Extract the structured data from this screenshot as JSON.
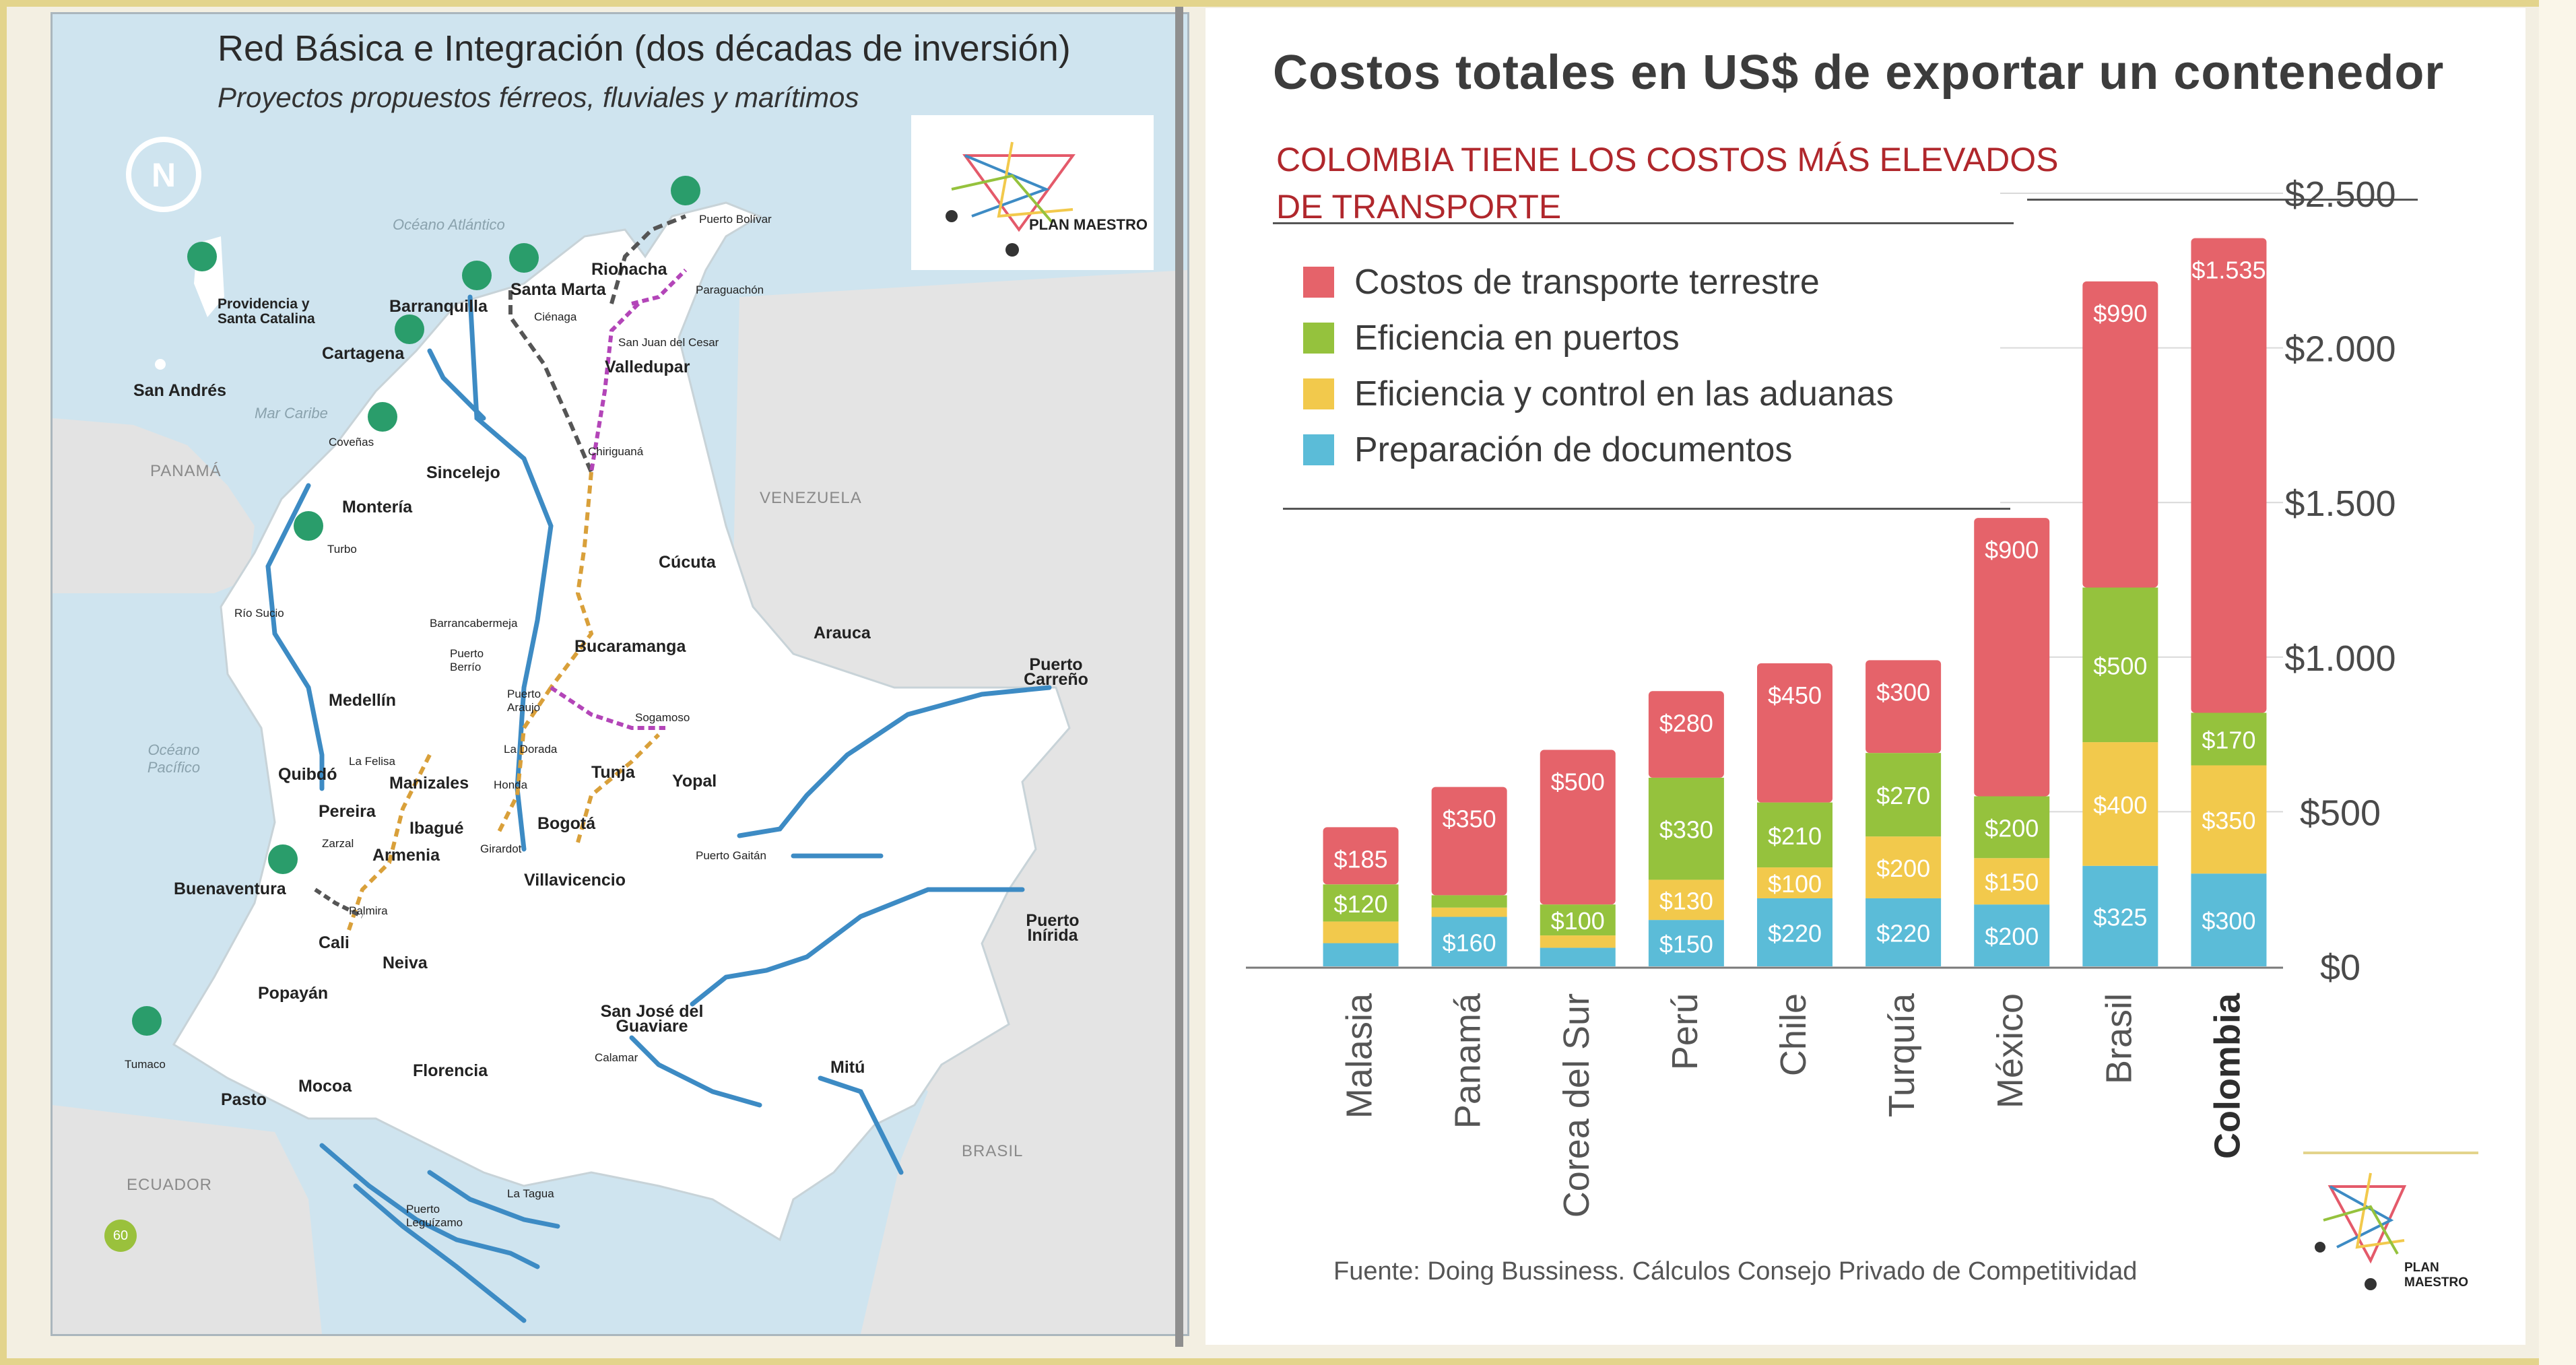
{
  "map": {
    "title": "Red Básica e Integración (dos décadas de inversión)",
    "subtitle": "Proyectos propuestos férreos, fluviales y marítimos",
    "logo_text": "PLAN MAESTRO",
    "page_number": "60",
    "labels": {
      "oceano_atlantico": "Océano Atlántico",
      "mar_caribe": "Mar Caribe",
      "oceano_pacifico": "Océano Pacífico",
      "panama": "PANAMÁ",
      "venezuela": "VENEZUELA",
      "ecuador": "ECUADOR",
      "brasil": "BRASIL",
      "providencia": "Providencia y Santa Catalina",
      "san_andres": "San Andrés",
      "barranquilla": "Barranquilla",
      "santa_marta": "Santa Marta",
      "riohacha": "Riohacha",
      "puerto_bolivar": "Puerto Bolívar",
      "paraguachon": "Paraguachón",
      "cienaga": "Ciénaga",
      "san_juan_cesar": "San Juan del Cesar",
      "valledupar": "Valledupar",
      "cartagena": "Cartagena",
      "covenas": "Coveñas",
      "sincelejo": "Sincelejo",
      "chiriguana": "Chiriguaná",
      "monteria": "Montería",
      "turbo": "Turbo",
      "cucuta": "Cúcuta",
      "rio_sucio": "Río Sucio",
      "barrancabermeja": "Barrancabermeja",
      "bucaramanga": "Bucaramanga",
      "arauca": "Arauca",
      "puerto_carreno": "Puerto Carreño",
      "puerto_berrio": "Puerto Berrío",
      "puerto_araujo": "Puerto Araujo",
      "sogamoso": "Sogamoso",
      "medellin": "Medellín",
      "la_felisa": "La Felisa",
      "la_dorada": "La Dorada",
      "quibdo": "Quibdó",
      "manizales": "Manizales",
      "honda": "Honda",
      "tunja": "Tunja",
      "yopal": "Yopal",
      "pereira": "Pereira",
      "ibague": "Ibagué",
      "zarzal": "Zarzal",
      "armenia": "Armenia",
      "bogota": "Bogotá",
      "girardot": "Girardot",
      "puerto_gaitan": "Puerto Gaitán",
      "villavicencio": "Villavicencio",
      "buenaventura": "Buenaventura",
      "palmira": "Palmira",
      "cali": "Cali",
      "neiva": "Neiva",
      "puerto_inirida": "Puerto Inírida",
      "popayan": "Popayán",
      "san_jose": "San José del Guaviare",
      "calamar": "Calamar",
      "tumaco": "Tumaco",
      "mitu": "Mitú",
      "florencia": "Florencia",
      "pasto": "Pasto",
      "mocoa": "Mocoa",
      "la_tagua": "La Tagua",
      "puerto_leguizamo": "Puerto Leguízamo"
    }
  },
  "chart": {
    "subtitle_line1": "COLOMBIA TIENE LOS COSTOS MÁS ELEVADOS",
    "subtitle_line2": "DE TRANSPORTE",
    "source": "Fuente: Doing Bussiness. Cálculos Consejo Privado de Competitividad",
    "logo_text": "PLAN MAESTRO"
  },
  "chart_data": {
    "type": "bar",
    "stacked": true,
    "title": "Costos totales  en US$ de exportar un contenedor",
    "categories": [
      "Malasia",
      "Panamá",
      "Corea del Sur",
      "Perú",
      "Chile",
      "Turquía",
      "México",
      "Brasil",
      "Colombia"
    ],
    "highlight_category": "Colombia",
    "ylim": [
      0,
      2500
    ],
    "yticks": [
      0,
      500,
      1000,
      1500,
      2000,
      2500
    ],
    "ytick_labels": [
      "$0",
      "$500",
      "$1.000",
      "$1.500",
      "$2.000",
      "$2.500"
    ],
    "series": [
      {
        "name": "Preparación de documentos",
        "color": "#5bbcd8",
        "values": [
          75,
          160,
          60,
          150,
          220,
          220,
          200,
          325,
          300
        ],
        "labels": [
          "",
          "$160",
          "",
          "$150",
          "$220",
          "$220",
          "$200",
          "$325",
          "$300"
        ]
      },
      {
        "name": "Eficiencia y control en las aduanas",
        "color": "#f2c94c",
        "values": [
          70,
          30,
          40,
          130,
          100,
          200,
          150,
          400,
          350
        ],
        "labels": [
          "",
          "",
          "",
          "$130",
          "$100",
          "$200",
          "$150",
          "$400",
          "$350"
        ]
      },
      {
        "name": "Eficiencia en puertos",
        "color": "#95c23d",
        "values": [
          120,
          40,
          100,
          330,
          210,
          270,
          200,
          500,
          170
        ],
        "labels": [
          "$120",
          "",
          "$100",
          "$330",
          "$210",
          "$270",
          "$200",
          "$500",
          "$170"
        ]
      },
      {
        "name": "Costos de transporte terrestre",
        "color": "#e5636a",
        "values": [
          185,
          350,
          500,
          280,
          450,
          300,
          900,
          990,
          1535
        ],
        "labels": [
          "$185",
          "$350",
          "$500",
          "$280",
          "$450",
          "$300",
          "$900",
          "$990",
          "$1.535"
        ]
      }
    ],
    "legend_order": [
      "Costos de transporte terrestre",
      "Eficiencia en puertos",
      "Eficiencia y control en las aduanas",
      "Preparación de documentos"
    ],
    "legend_position": "top-left",
    "gridlines": true
  }
}
